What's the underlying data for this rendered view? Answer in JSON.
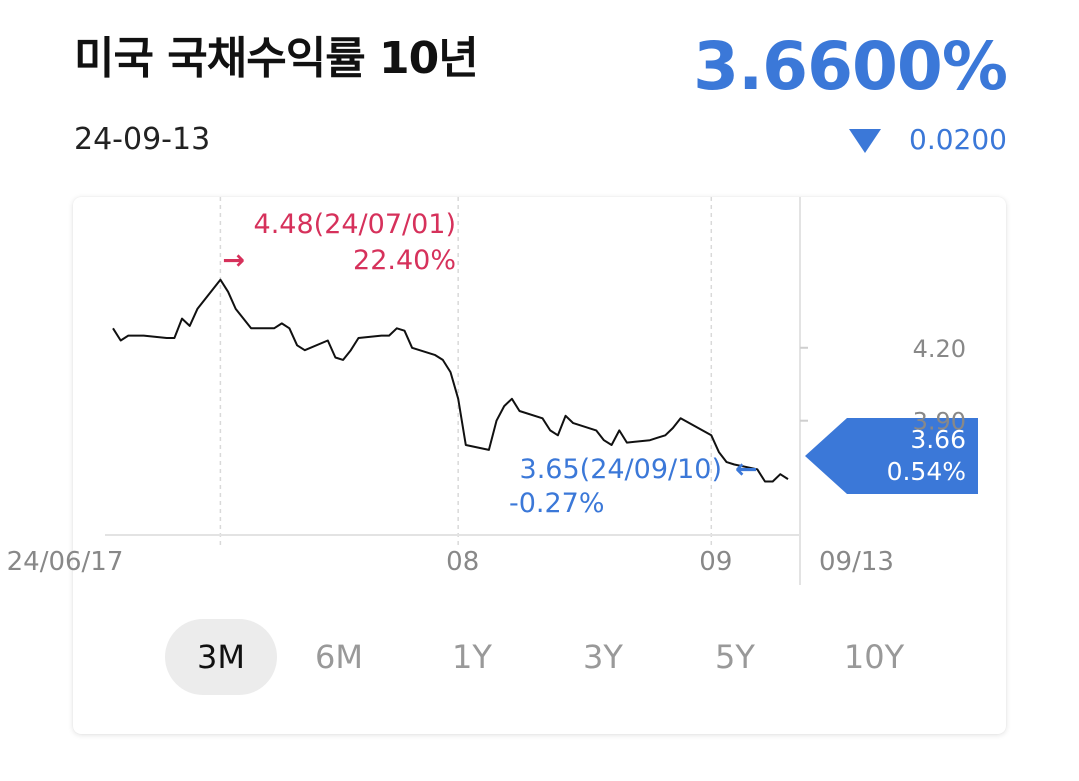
{
  "header": {
    "title": "미국 국채수익률 10년",
    "date": "24-09-13",
    "price": "3.6600%",
    "change": "0.0200",
    "change_direction": "down"
  },
  "colors": {
    "accent": "#3b78d8",
    "high": "#d6315b",
    "line": "#111111",
    "tab_active_bg": "#ececec"
  },
  "annotations": {
    "high": {
      "line1": "4.48(24/07/01)",
      "line2": "22.40%",
      "arrow": "→"
    },
    "low": {
      "line1": "3.65(24/09/10)",
      "line2": "-0.27%",
      "arrow": "←"
    },
    "current": {
      "value": "3.66",
      "percent": "0.54%"
    }
  },
  "tabs": [
    {
      "label": "3M",
      "active": true
    },
    {
      "label": "6M",
      "active": false
    },
    {
      "label": "1Y",
      "active": false
    },
    {
      "label": "3Y",
      "active": false
    },
    {
      "label": "5Y",
      "active": false
    },
    {
      "label": "10Y",
      "active": false
    }
  ],
  "chart_data": {
    "type": "line",
    "title": "",
    "xlabel": "",
    "ylabel": "",
    "ylim": [
      3.43,
      4.82
    ],
    "y_ticks": [
      4.2,
      3.9
    ],
    "y_tick_labels": [
      "4.20",
      "3.90"
    ],
    "x_ticks": [
      {
        "label": "24/06/17",
        "date": "2024-06-17"
      },
      {
        "label": "08",
        "date": "2024-08-01"
      },
      {
        "label": "09",
        "date": "2024-09-03"
      }
    ],
    "x_end_label": "09/13",
    "gridlines_vertical": [
      "2024-07-01",
      "2024-08-01",
      "2024-09-03"
    ],
    "series": [
      {
        "points": [
          [
            "2024-06-17",
            4.28
          ],
          [
            "2024-06-18",
            4.23
          ],
          [
            "2024-06-19",
            4.25
          ],
          [
            "2024-06-20",
            4.25
          ],
          [
            "2024-06-21",
            4.25
          ],
          [
            "2024-06-24",
            4.24
          ],
          [
            "2024-06-25",
            4.24
          ],
          [
            "2024-06-26",
            4.32
          ],
          [
            "2024-06-27",
            4.29
          ],
          [
            "2024-06-28",
            4.36
          ],
          [
            "2024-07-01",
            4.48
          ],
          [
            "2024-07-02",
            4.43
          ],
          [
            "2024-07-03",
            4.36
          ],
          [
            "2024-07-05",
            4.28
          ],
          [
            "2024-07-08",
            4.28
          ],
          [
            "2024-07-09",
            4.3
          ],
          [
            "2024-07-10",
            4.28
          ],
          [
            "2024-07-11",
            4.21
          ],
          [
            "2024-07-12",
            4.19
          ],
          [
            "2024-07-15",
            4.23
          ],
          [
            "2024-07-16",
            4.16
          ],
          [
            "2024-07-17",
            4.15
          ],
          [
            "2024-07-18",
            4.19
          ],
          [
            "2024-07-19",
            4.24
          ],
          [
            "2024-07-22",
            4.25
          ],
          [
            "2024-07-23",
            4.25
          ],
          [
            "2024-07-24",
            4.28
          ],
          [
            "2024-07-25",
            4.27
          ],
          [
            "2024-07-26",
            4.2
          ],
          [
            "2024-07-29",
            4.17
          ],
          [
            "2024-07-30",
            4.15
          ],
          [
            "2024-07-31",
            4.1
          ],
          [
            "2024-08-01",
            3.99
          ],
          [
            "2024-08-02",
            3.8
          ],
          [
            "2024-08-05",
            3.78
          ],
          [
            "2024-08-06",
            3.9
          ],
          [
            "2024-08-07",
            3.96
          ],
          [
            "2024-08-08",
            3.99
          ],
          [
            "2024-08-09",
            3.94
          ],
          [
            "2024-08-12",
            3.91
          ],
          [
            "2024-08-13",
            3.86
          ],
          [
            "2024-08-14",
            3.84
          ],
          [
            "2024-08-15",
            3.92
          ],
          [
            "2024-08-16",
            3.89
          ],
          [
            "2024-08-19",
            3.86
          ],
          [
            "2024-08-20",
            3.82
          ],
          [
            "2024-08-21",
            3.8
          ],
          [
            "2024-08-22",
            3.86
          ],
          [
            "2024-08-23",
            3.81
          ],
          [
            "2024-08-26",
            3.82
          ],
          [
            "2024-08-27",
            3.83
          ],
          [
            "2024-08-28",
            3.84
          ],
          [
            "2024-08-29",
            3.87
          ],
          [
            "2024-08-30",
            3.91
          ],
          [
            "2024-09-03",
            3.84
          ],
          [
            "2024-09-04",
            3.77
          ],
          [
            "2024-09-05",
            3.73
          ],
          [
            "2024-09-06",
            3.72
          ],
          [
            "2024-09-09",
            3.7
          ],
          [
            "2024-09-10",
            3.65
          ],
          [
            "2024-09-11",
            3.65
          ],
          [
            "2024-09-12",
            3.68
          ],
          [
            "2024-09-13",
            3.66
          ]
        ]
      }
    ]
  }
}
